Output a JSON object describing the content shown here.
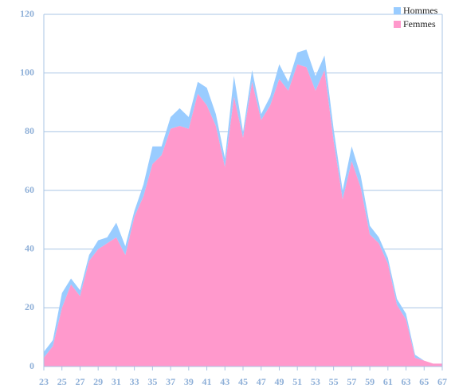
{
  "chart_data": {
    "type": "stacked_area",
    "x": [
      23,
      24,
      25,
      26,
      27,
      28,
      29,
      30,
      31,
      32,
      33,
      34,
      35,
      36,
      37,
      38,
      39,
      40,
      41,
      42,
      43,
      44,
      45,
      46,
      47,
      48,
      49,
      50,
      51,
      52,
      53,
      54,
      55,
      56,
      57,
      58,
      59,
      60,
      61,
      62,
      63,
      64,
      65,
      66,
      67
    ],
    "series": [
      {
        "name": "Hommes",
        "color": "#99ccff",
        "values": [
          2,
          2,
          5,
          2,
          2,
          2,
          3,
          2,
          5,
          3,
          2,
          4,
          6,
          3,
          4,
          6,
          4,
          4,
          6,
          4,
          3,
          7,
          2,
          4,
          2,
          3,
          5,
          3,
          4,
          6,
          5,
          5,
          4,
          3,
          5,
          4,
          3,
          2,
          2,
          2,
          2,
          1,
          0,
          0,
          0
        ]
      },
      {
        "name": "Femmes",
        "color": "#ff99cc",
        "values": [
          3,
          7,
          20,
          28,
          24,
          36,
          40,
          42,
          44,
          38,
          51,
          58,
          69,
          72,
          81,
          82,
          81,
          93,
          89,
          82,
          68,
          92,
          78,
          97,
          84,
          89,
          98,
          94,
          103,
          102,
          94,
          101,
          77,
          57,
          70,
          61,
          45,
          42,
          35,
          21,
          16,
          3,
          2,
          1,
          1
        ]
      }
    ],
    "xlim": [
      23,
      67
    ],
    "xticks": [
      23,
      25,
      27,
      29,
      31,
      33,
      35,
      37,
      39,
      41,
      43,
      45,
      47,
      49,
      51,
      53,
      55,
      57,
      59,
      61,
      63,
      65,
      67
    ],
    "ylim": [
      0,
      120
    ],
    "yticks": [
      0,
      20,
      40,
      60,
      80,
      100,
      120
    ],
    "grid": true,
    "legend": "top-right"
  }
}
